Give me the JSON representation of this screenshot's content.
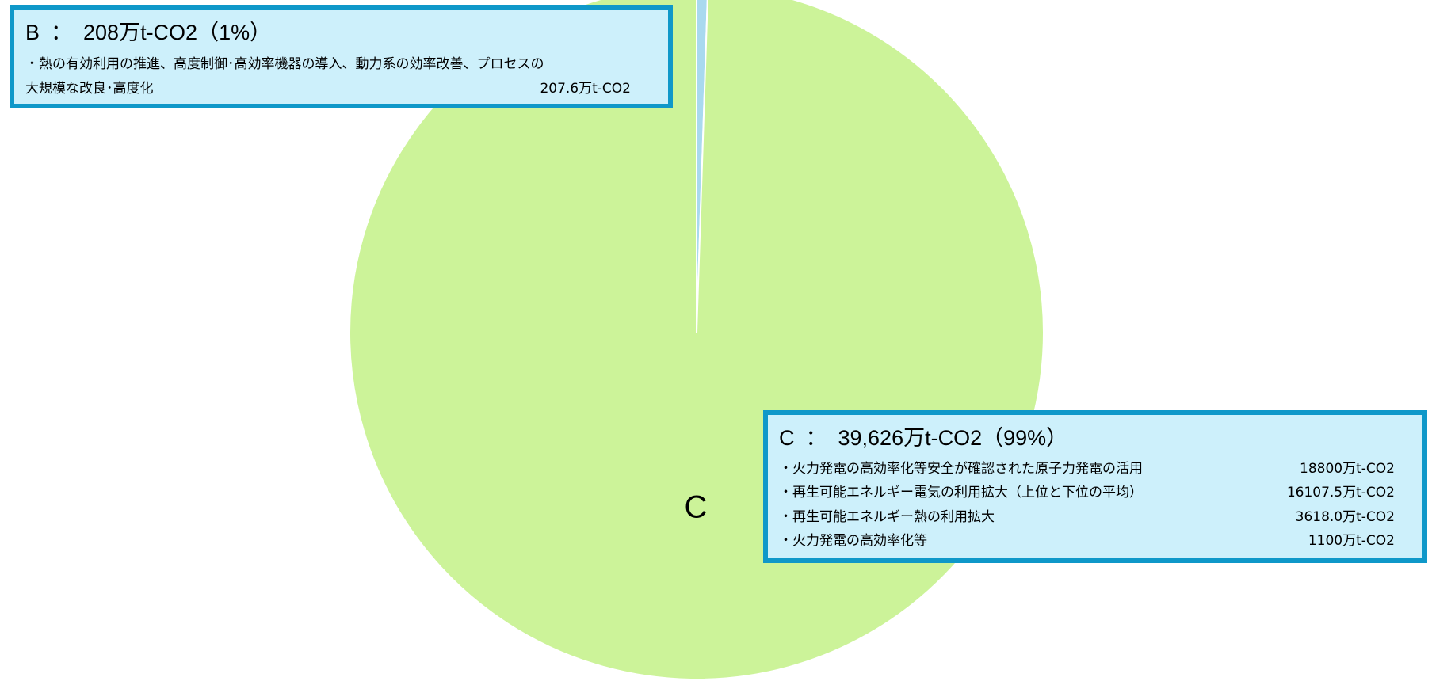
{
  "chart_data": {
    "type": "pie",
    "categories": [
      "B",
      "C"
    ],
    "values": [
      208,
      39626
    ],
    "value_labels": [
      "208万t-CO2（1%）",
      "39,626万t-CO2（99%）"
    ],
    "colors": [
      "#a9d9ef",
      "#ccf399"
    ],
    "separator": "：",
    "breakdown": [
      {
        "items": [
          {
            "text": "・熱の有効利用の推進、高度制御･高効率機器の導入、動力系の効率改善、プロセスの",
            "amount": ""
          },
          {
            "text": "大規模な改良･高度化",
            "amount": "207.6万t-CO2"
          }
        ]
      },
      {
        "items": [
          {
            "text": "・火力発電の高効率化等安全が確認された原子力発電の活用",
            "amount": "18800万t-CO2"
          },
          {
            "text": "・再生可能エネルギー電気の利用拡大（上位と下位の平均）",
            "amount": "16107.5万t-CO2"
          },
          {
            "text": "・再生可能エネルギー熱の利用拡大",
            "amount": "3618.0万t-CO2"
          },
          {
            "text": "・火力発電の高効率化等",
            "amount": "1100万t-CO2"
          }
        ]
      }
    ]
  }
}
